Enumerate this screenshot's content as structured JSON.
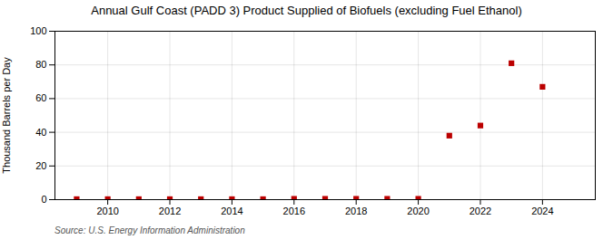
{
  "chart_data": {
    "type": "scatter",
    "title": "Annual Gulf Coast (PADD 3) Product Supplied of Biofuels (excluding Fuel Ethanol)",
    "ylabel": "Thousand Barrels per Day",
    "source": "Source: U.S. Energy Information Administration",
    "x": [
      2009,
      2010,
      2011,
      2012,
      2013,
      2014,
      2015,
      2016,
      2017,
      2018,
      2019,
      2020,
      2021,
      2022,
      2023,
      2024
    ],
    "values": [
      0.3,
      0.3,
      0.3,
      0.3,
      0.3,
      0.3,
      0.3,
      0.5,
      0.5,
      0.5,
      0.5,
      0.5,
      38.0,
      44.0,
      81.0,
      67.0
    ],
    "color": "#bb0000",
    "marker": "square",
    "xlim": [
      2008.3,
      2025.7
    ],
    "ylim": [
      0,
      100
    ],
    "xticks": [
      2010,
      2012,
      2014,
      2016,
      2018,
      2020,
      2022,
      2024
    ],
    "yticks": [
      0,
      20,
      40,
      60,
      80,
      100
    ],
    "grid": true
  }
}
